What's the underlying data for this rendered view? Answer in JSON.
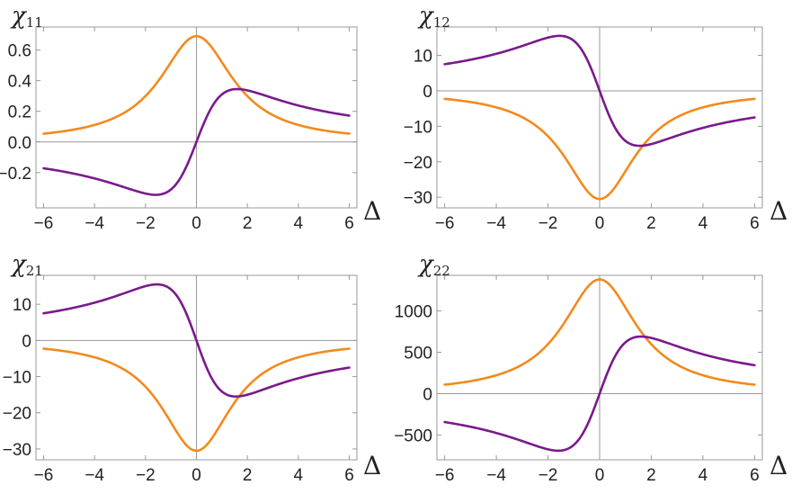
{
  "colors": {
    "orange": "#f28a1d",
    "purple": "#7a1a8c"
  },
  "chart_data": [
    {
      "type": "line",
      "title": "",
      "ylabel_main": "χ",
      "ylabel_sub": "11",
      "xlabel": "Δ",
      "xlim": [
        -6.3,
        6.3
      ],
      "ylim": [
        -0.43,
        0.75
      ],
      "xticks": [
        -6,
        -4,
        -2,
        0,
        2,
        4,
        6
      ],
      "xtick_labels": [
        "−6",
        "−4",
        "−2",
        "0",
        "2",
        "4",
        "6"
      ],
      "yticks": [
        -0.2,
        0,
        0.2,
        0.4,
        0.6
      ],
      "ytick_labels": [
        "−0.2",
        "0.0",
        "0.2",
        "0.4",
        "0.6"
      ],
      "series": [
        {
          "name": "orange",
          "color": "#f28a1d",
          "kind": "absorptive",
          "peak": 0.69,
          "gamma": 1.75
        },
        {
          "name": "purple",
          "color": "#7a1a8c",
          "kind": "dispersive",
          "peak": 0.345,
          "gamma": 1.6
        }
      ]
    },
    {
      "type": "line",
      "title": "",
      "ylabel_main": "χ",
      "ylabel_sub": "12",
      "xlabel": "Δ",
      "xlim": [
        -6.3,
        6.3
      ],
      "ylim": [
        -33,
        18
      ],
      "xticks": [
        -6,
        -4,
        -2,
        0,
        2,
        4,
        6
      ],
      "xtick_labels": [
        "−6",
        "−4",
        "−2",
        "0",
        "2",
        "4",
        "6"
      ],
      "yticks": [
        -30,
        -20,
        -10,
        0,
        10
      ],
      "ytick_labels": [
        "−30",
        "−20",
        "−10",
        "0",
        "10"
      ],
      "series": [
        {
          "name": "orange",
          "color": "#f28a1d",
          "kind": "absorptive",
          "peak": -30.5,
          "gamma": 1.7
        },
        {
          "name": "purple",
          "color": "#7a1a8c",
          "kind": "dispersive",
          "peak": -15.5,
          "gamma": 1.55
        }
      ]
    },
    {
      "type": "line",
      "title": "",
      "ylabel_main": "χ",
      "ylabel_sub": "21",
      "xlabel": "Δ",
      "xlim": [
        -6.3,
        6.3
      ],
      "ylim": [
        -33,
        18
      ],
      "xticks": [
        -6,
        -4,
        -2,
        0,
        2,
        4,
        6
      ],
      "xtick_labels": [
        "−6",
        "−4",
        "−2",
        "0",
        "2",
        "4",
        "6"
      ],
      "yticks": [
        -30,
        -20,
        -10,
        0,
        10
      ],
      "ytick_labels": [
        "−30",
        "−20",
        "−10",
        "0",
        "10"
      ],
      "series": [
        {
          "name": "orange",
          "color": "#f28a1d",
          "kind": "absorptive",
          "peak": -30.5,
          "gamma": 1.7
        },
        {
          "name": "purple",
          "color": "#7a1a8c",
          "kind": "dispersive",
          "peak": -15.5,
          "gamma": 1.55
        }
      ]
    },
    {
      "type": "line",
      "title": "",
      "ylabel_main": "χ",
      "ylabel_sub": "22",
      "xlabel": "Δ",
      "xlim": [
        -6.3,
        6.3
      ],
      "ylim": [
        -800,
        1430
      ],
      "xticks": [
        -6,
        -4,
        -2,
        0,
        2,
        4,
        6
      ],
      "xtick_labels": [
        "−6",
        "−4",
        "−2",
        "0",
        "2",
        "4",
        "6"
      ],
      "yticks": [
        -500,
        0,
        500,
        1000
      ],
      "ytick_labels": [
        "−500",
        "0",
        "500",
        "1000"
      ],
      "series": [
        {
          "name": "orange",
          "color": "#f28a1d",
          "kind": "absorptive",
          "peak": 1380,
          "gamma": 1.75
        },
        {
          "name": "purple",
          "color": "#7a1a8c",
          "kind": "dispersive",
          "peak": 690,
          "gamma": 1.6
        }
      ]
    }
  ]
}
